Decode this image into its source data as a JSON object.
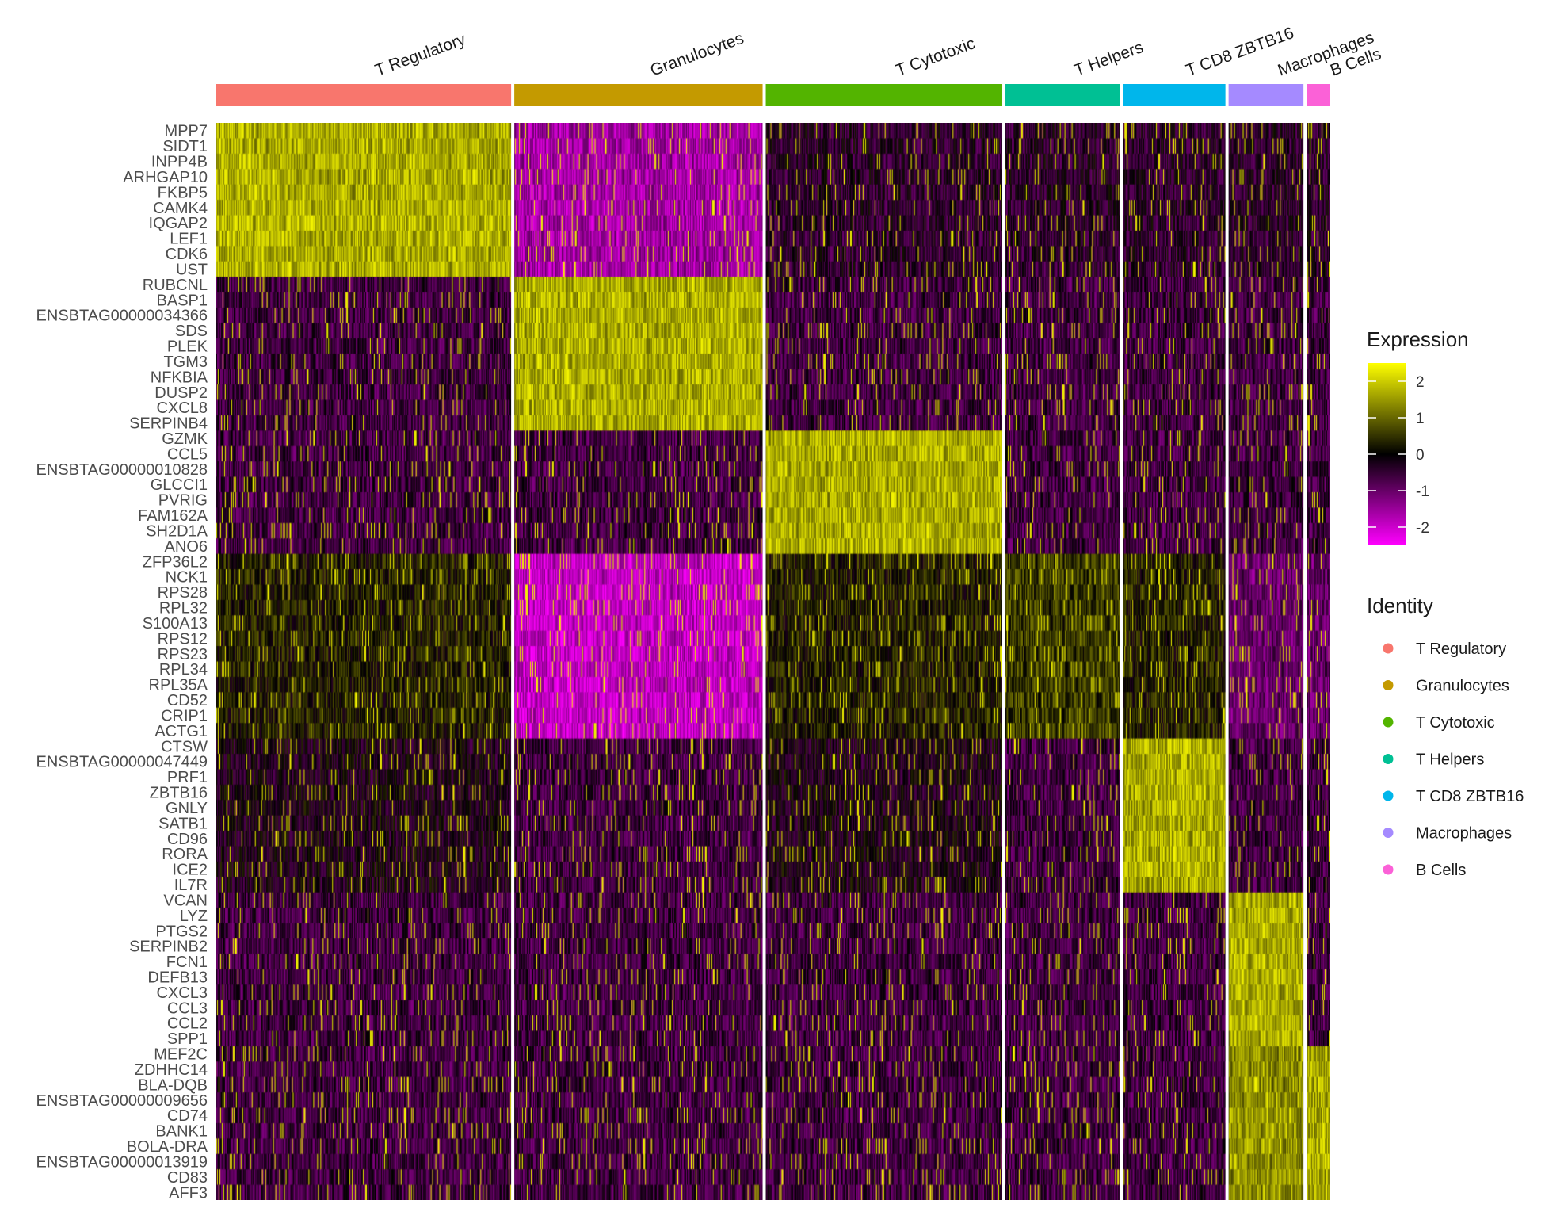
{
  "chart_data": {
    "type": "heatmap",
    "clusters": [
      {
        "name": "T Regulatory",
        "color": "#F8766D",
        "cells": 375
      },
      {
        "name": "Granulocytes",
        "color": "#C49A00",
        "cells": 315
      },
      {
        "name": "T Cytotoxic",
        "color": "#53B400",
        "cells": 300
      },
      {
        "name": "T Helpers",
        "color": "#00C094",
        "cells": 145
      },
      {
        "name": "T CD8 ZBTB16",
        "color": "#00B6EB",
        "cells": 130
      },
      {
        "name": "Macrophages",
        "color": "#A58AFF",
        "cells": 95
      },
      {
        "name": "B Cells",
        "color": "#FB61D7",
        "cells": 30
      }
    ],
    "gene_groups": [
      {
        "cluster": "T Regulatory",
        "genes": [
          "MPP7",
          "SIDT1",
          "INPP4B",
          "ARHGAP10",
          "FKBP5",
          "CAMK4",
          "IQGAP2",
          "LEF1",
          "CDK6",
          "UST"
        ]
      },
      {
        "cluster": "Granulocytes",
        "genes": [
          "RUBCNL",
          "BASP1",
          "ENSBTAG00000034366",
          "SDS",
          "PLEK",
          "TGM3",
          "NFKBIA",
          "DUSP2",
          "CXCL8",
          "SERPINB4"
        ]
      },
      {
        "cluster": "T Cytotoxic",
        "genes": [
          "GZMK",
          "CCL5",
          "ENSBTAG00000010828",
          "GLCCI1",
          "PVRIG",
          "FAM162A",
          "SH2D1A",
          "ANO6"
        ]
      },
      {
        "cluster": "T Helpers",
        "genes": [
          "ZFP36L2",
          "NCK1",
          "RPS28",
          "RPL32",
          "S100A13",
          "RPS12",
          "RPS23",
          "RPL34",
          "RPL35A",
          "CD52",
          "CRIP1",
          "ACTG1"
        ]
      },
      {
        "cluster": "T CD8 ZBTB16",
        "genes": [
          "CTSW",
          "ENSBTAG00000047449",
          "PRF1",
          "ZBTB16",
          "GNLY",
          "SATB1",
          "CD96",
          "RORA",
          "ICE2",
          "IL7R"
        ]
      },
      {
        "cluster": "Macrophages",
        "genes": [
          "VCAN",
          "LYZ",
          "PTGS2",
          "SERPINB2",
          "FCN1",
          "DEFB13",
          "CXCL3",
          "CCL3",
          "CCL2",
          "SPP1"
        ]
      },
      {
        "cluster": "B Cells",
        "genes": [
          "MEF2C",
          "ZDHHC14",
          "BLA-DQB",
          "ENSBTAG00000009656",
          "CD74",
          "BANK1",
          "BOLA-DRA",
          "ENSBTAG00000013919",
          "CD83",
          "AFF3"
        ]
      }
    ],
    "color_scale": {
      "title": "Expression",
      "stops": [
        {
          "value": -2.5,
          "color": "#FF00FF"
        },
        {
          "value": 0,
          "color": "#000000"
        },
        {
          "value": 2.5,
          "color": "#FFFF00"
        }
      ],
      "ticks": [
        "2",
        "1",
        "0",
        "-1",
        "-2"
      ],
      "tick_values": [
        2,
        1,
        0,
        -1,
        -2
      ],
      "range": [
        -2.5,
        2.5
      ]
    },
    "identity_legend": {
      "title": "Identity",
      "items": [
        "T Regulatory",
        "Granulocytes",
        "T Cytotoxic",
        "T Helpers",
        "T CD8 ZBTB16",
        "Macrophages",
        "B Cells"
      ]
    },
    "legend_position": "right"
  }
}
